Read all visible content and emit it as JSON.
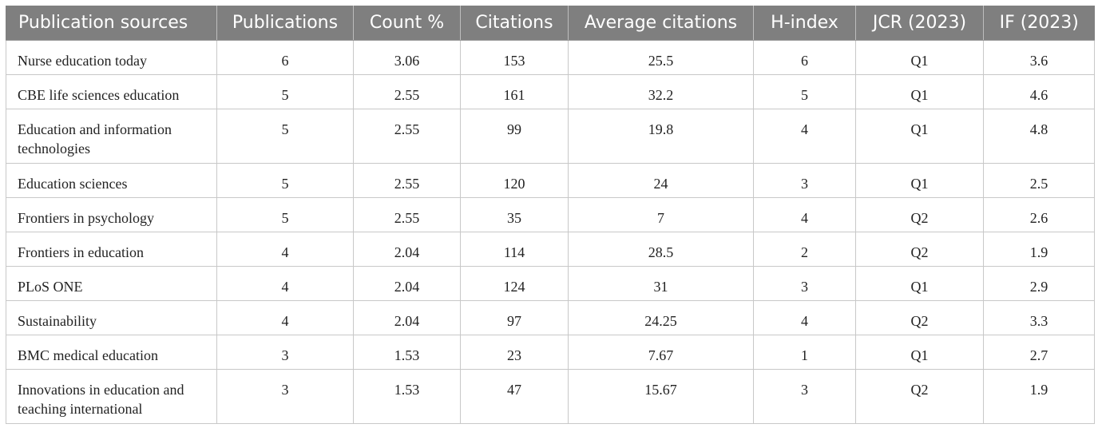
{
  "table": {
    "headers": [
      "Publication sources",
      "Publications",
      "Count %",
      "Citations",
      "Average citations",
      "H-index",
      "JCR (2023)",
      "IF (2023)"
    ],
    "rows": [
      [
        "Nurse education today",
        "6",
        "3.06",
        "153",
        "25.5",
        "6",
        "Q1",
        "3.6"
      ],
      [
        "CBE life sciences education",
        "5",
        "2.55",
        "161",
        "32.2",
        "5",
        "Q1",
        "4.6"
      ],
      [
        "Education and information technologies",
        "5",
        "2.55",
        "99",
        "19.8",
        "4",
        "Q1",
        "4.8"
      ],
      [
        "Education sciences",
        "5",
        "2.55",
        "120",
        "24",
        "3",
        "Q1",
        "2.5"
      ],
      [
        "Frontiers in psychology",
        "5",
        "2.55",
        "35",
        "7",
        "4",
        "Q2",
        "2.6"
      ],
      [
        "Frontiers in education",
        "4",
        "2.04",
        "114",
        "28.5",
        "2",
        "Q2",
        "1.9"
      ],
      [
        "PLoS ONE",
        "4",
        "2.04",
        "124",
        "31",
        "3",
        "Q1",
        "2.9"
      ],
      [
        "Sustainability",
        "4",
        "2.04",
        "97",
        "24.25",
        "4",
        "Q2",
        "3.3"
      ],
      [
        "BMC medical education",
        "3",
        "1.53",
        "23",
        "7.67",
        "1",
        "Q1",
        "2.7"
      ],
      [
        "Innovations in education and teaching international",
        "3",
        "1.53",
        "47",
        "15.67",
        "3",
        "Q2",
        "1.9"
      ]
    ]
  },
  "colors": {
    "header_bg": "#7f7f7f",
    "header_text": "#ffffff",
    "border": "#c8c8c8"
  }
}
